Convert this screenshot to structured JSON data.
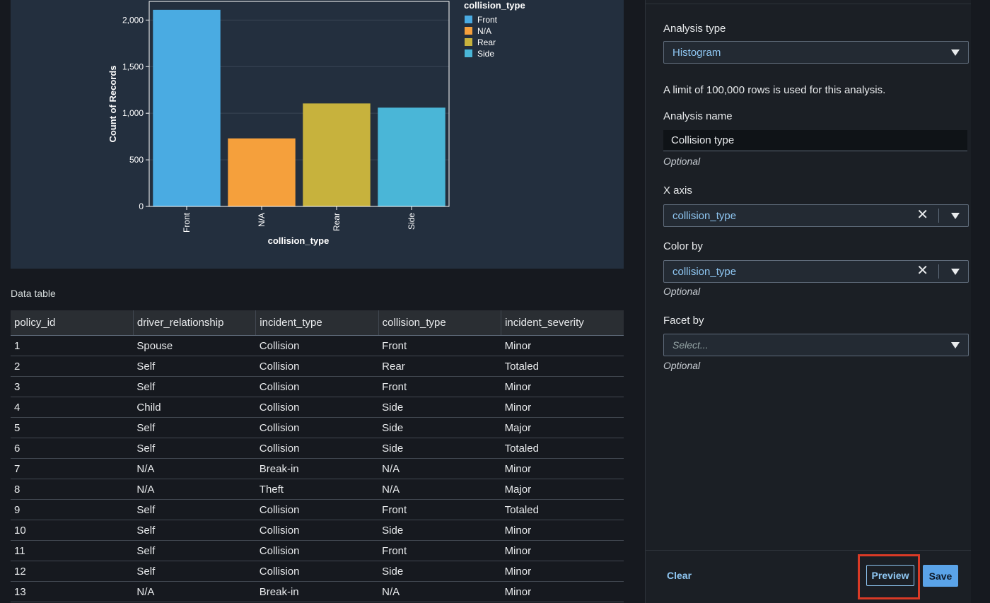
{
  "chart_data": {
    "type": "bar",
    "categories": [
      "Front",
      "N/A",
      "Rear",
      "Side"
    ],
    "values": [
      2110,
      730,
      1105,
      1060
    ],
    "colors": [
      "#4aabe2",
      "#f5a03c",
      "#c7b23d",
      "#4ab6d7"
    ],
    "title": "",
    "xlabel": "collision_type",
    "ylabel": "Count of Records",
    "ylim": [
      0,
      2200
    ],
    "yticks": [
      0,
      500,
      1000,
      1500,
      2000
    ],
    "ytick_labels": [
      "0",
      "500",
      "1,000",
      "1,500",
      "2,000"
    ],
    "grid": true,
    "legend": {
      "title": "collision_type",
      "placement": "right",
      "entries": [
        "Front",
        "N/A",
        "Rear",
        "Side"
      ]
    }
  },
  "table": {
    "title": "Data table",
    "columns": [
      "policy_id",
      "driver_relationship",
      "incident_type",
      "collision_type",
      "incident_severity"
    ],
    "rows": [
      [
        "1",
        "Spouse",
        "Collision",
        "Front",
        "Minor"
      ],
      [
        "2",
        "Self",
        "Collision",
        "Rear",
        "Totaled"
      ],
      [
        "3",
        "Self",
        "Collision",
        "Front",
        "Minor"
      ],
      [
        "4",
        "Child",
        "Collision",
        "Side",
        "Minor"
      ],
      [
        "5",
        "Self",
        "Collision",
        "Side",
        "Major"
      ],
      [
        "6",
        "Self",
        "Collision",
        "Side",
        "Totaled"
      ],
      [
        "7",
        "N/A",
        "Break-in",
        "N/A",
        "Minor"
      ],
      [
        "8",
        "N/A",
        "Theft",
        "N/A",
        "Major"
      ],
      [
        "9",
        "Self",
        "Collision",
        "Front",
        "Totaled"
      ],
      [
        "10",
        "Self",
        "Collision",
        "Side",
        "Minor"
      ],
      [
        "11",
        "Self",
        "Collision",
        "Front",
        "Minor"
      ],
      [
        "12",
        "Self",
        "Collision",
        "Side",
        "Minor"
      ],
      [
        "13",
        "N/A",
        "Break-in",
        "N/A",
        "Minor"
      ]
    ]
  },
  "panel": {
    "analysis_type_label": "Analysis type",
    "analysis_type_value": "Histogram",
    "limit_text": "A limit of 100,000 rows is used for this analysis.",
    "analysis_name_label": "Analysis name",
    "analysis_name_value": "Collision type",
    "optional": "Optional",
    "x_axis_label": "X axis",
    "x_axis_value": "collision_type",
    "color_by_label": "Color by",
    "color_by_value": "collision_type",
    "facet_by_label": "Facet by",
    "facet_by_placeholder": "Select...",
    "clear_label": "Clear",
    "preview_label": "Preview",
    "save_label": "Save",
    "clear_icon": "close-icon",
    "dropdown_icon": "caret-down-icon"
  }
}
